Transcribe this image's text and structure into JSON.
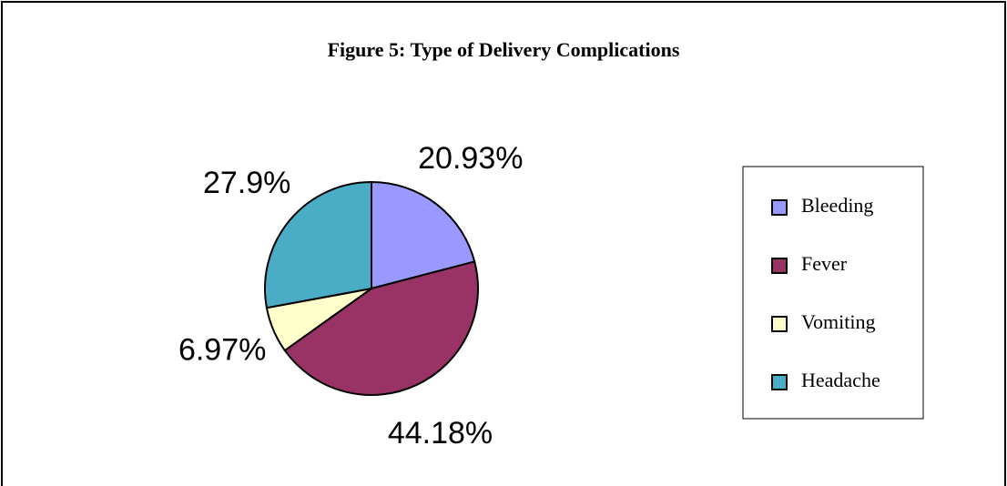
{
  "chart_data": {
    "type": "pie",
    "title": "Figure 5:  Type of Delivery Complications",
    "categories": [
      "Bleeding",
      "Fever",
      "Vomiting",
      "Headache"
    ],
    "values": [
      20.93,
      44.18,
      6.97,
      27.9
    ],
    "value_labels": [
      "20.93%",
      "44.18%",
      "6.97%",
      "27.9%"
    ],
    "colors": [
      "#9999ff",
      "#993366",
      "#ffffcc",
      "#4bacc6"
    ],
    "legend": "right"
  }
}
